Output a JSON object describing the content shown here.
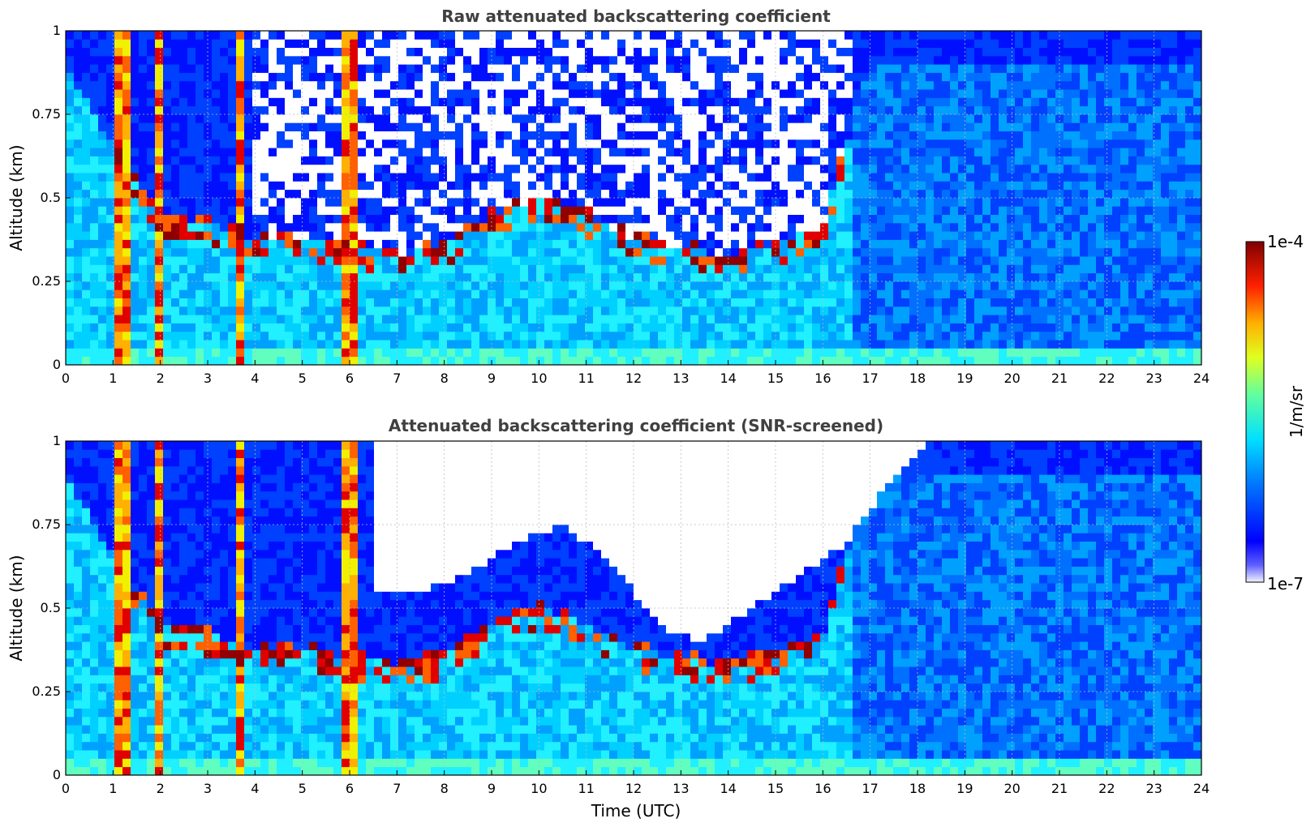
{
  "chart_data": [
    {
      "type": "heatmap",
      "title": "Raw attenuated backscattering coefficient",
      "xlabel": "",
      "ylabel": "Altitude (km)",
      "xlim": [
        0,
        24
      ],
      "ylim": [
        0,
        1
      ],
      "x_ticks": [
        "0",
        "1",
        "2",
        "3",
        "4",
        "5",
        "6",
        "7",
        "8",
        "9",
        "10",
        "11",
        "12",
        "13",
        "14",
        "15",
        "16",
        "17",
        "18",
        "19",
        "20",
        "21",
        "22",
        "23",
        "24"
      ],
      "y_ticks": [
        "0",
        "0.25",
        "0.5",
        "0.75",
        "1"
      ],
      "grid": true,
      "screened": false,
      "features": {
        "surface_layer_top_km": 0.05,
        "boundary_layer_top_km": [
          [
            0,
            0.9
          ],
          [
            1.2,
            0.6
          ],
          [
            2,
            0.45
          ],
          [
            3,
            0.42
          ],
          [
            4,
            0.38
          ],
          [
            5,
            0.38
          ],
          [
            6,
            0.35
          ],
          [
            7,
            0.33
          ],
          [
            8,
            0.35
          ],
          [
            9,
            0.45
          ],
          [
            10,
            0.5
          ],
          [
            11,
            0.45
          ],
          [
            12,
            0.38
          ],
          [
            13,
            0.35
          ],
          [
            14,
            0.33
          ],
          [
            15,
            0.36
          ],
          [
            16,
            0.42
          ],
          [
            17,
            0.9
          ],
          [
            18,
            0.9
          ],
          [
            24,
            0.9
          ]
        ],
        "cloud_bands_utc": [
          [
            1.1,
            1.4
          ],
          [
            1.9,
            2.05
          ],
          [
            3.6,
            3.75
          ],
          [
            5.8,
            6.1
          ]
        ],
        "noisy_region_utc": [
          4.0,
          16.7
        ]
      }
    },
    {
      "type": "heatmap",
      "title": "Attenuated backscattering coefficient (SNR-screened)",
      "xlabel": "Time (UTC)",
      "ylabel": "Altitude (km)",
      "xlim": [
        0,
        24
      ],
      "ylim": [
        0,
        1
      ],
      "x_ticks": [
        "0",
        "1",
        "2",
        "3",
        "4",
        "5",
        "6",
        "7",
        "8",
        "9",
        "10",
        "11",
        "12",
        "13",
        "14",
        "15",
        "16",
        "17",
        "18",
        "19",
        "20",
        "21",
        "22",
        "23",
        "24"
      ],
      "y_ticks": [
        "0",
        "0.25",
        "0.5",
        "0.75",
        "1"
      ],
      "grid": true,
      "screened": true,
      "features": {
        "surface_layer_top_km": 0.05,
        "screened_out_above_km": [
          [
            6.5,
            0.55
          ],
          [
            7.5,
            0.55
          ],
          [
            8.5,
            0.6
          ],
          [
            9.5,
            0.7
          ],
          [
            10.5,
            0.75
          ],
          [
            11.5,
            0.65
          ],
          [
            12.5,
            0.45
          ],
          [
            13.5,
            0.4
          ],
          [
            14.5,
            0.5
          ],
          [
            15.5,
            0.6
          ],
          [
            16.5,
            0.7
          ],
          [
            17.5,
            0.9
          ],
          [
            18.3,
            1.0
          ]
        ]
      }
    }
  ],
  "colorbar": {
    "label": "1/m/sr",
    "max_label": "1e-4",
    "min_label": "1e-7",
    "colormap": "jet",
    "scale": "log"
  }
}
